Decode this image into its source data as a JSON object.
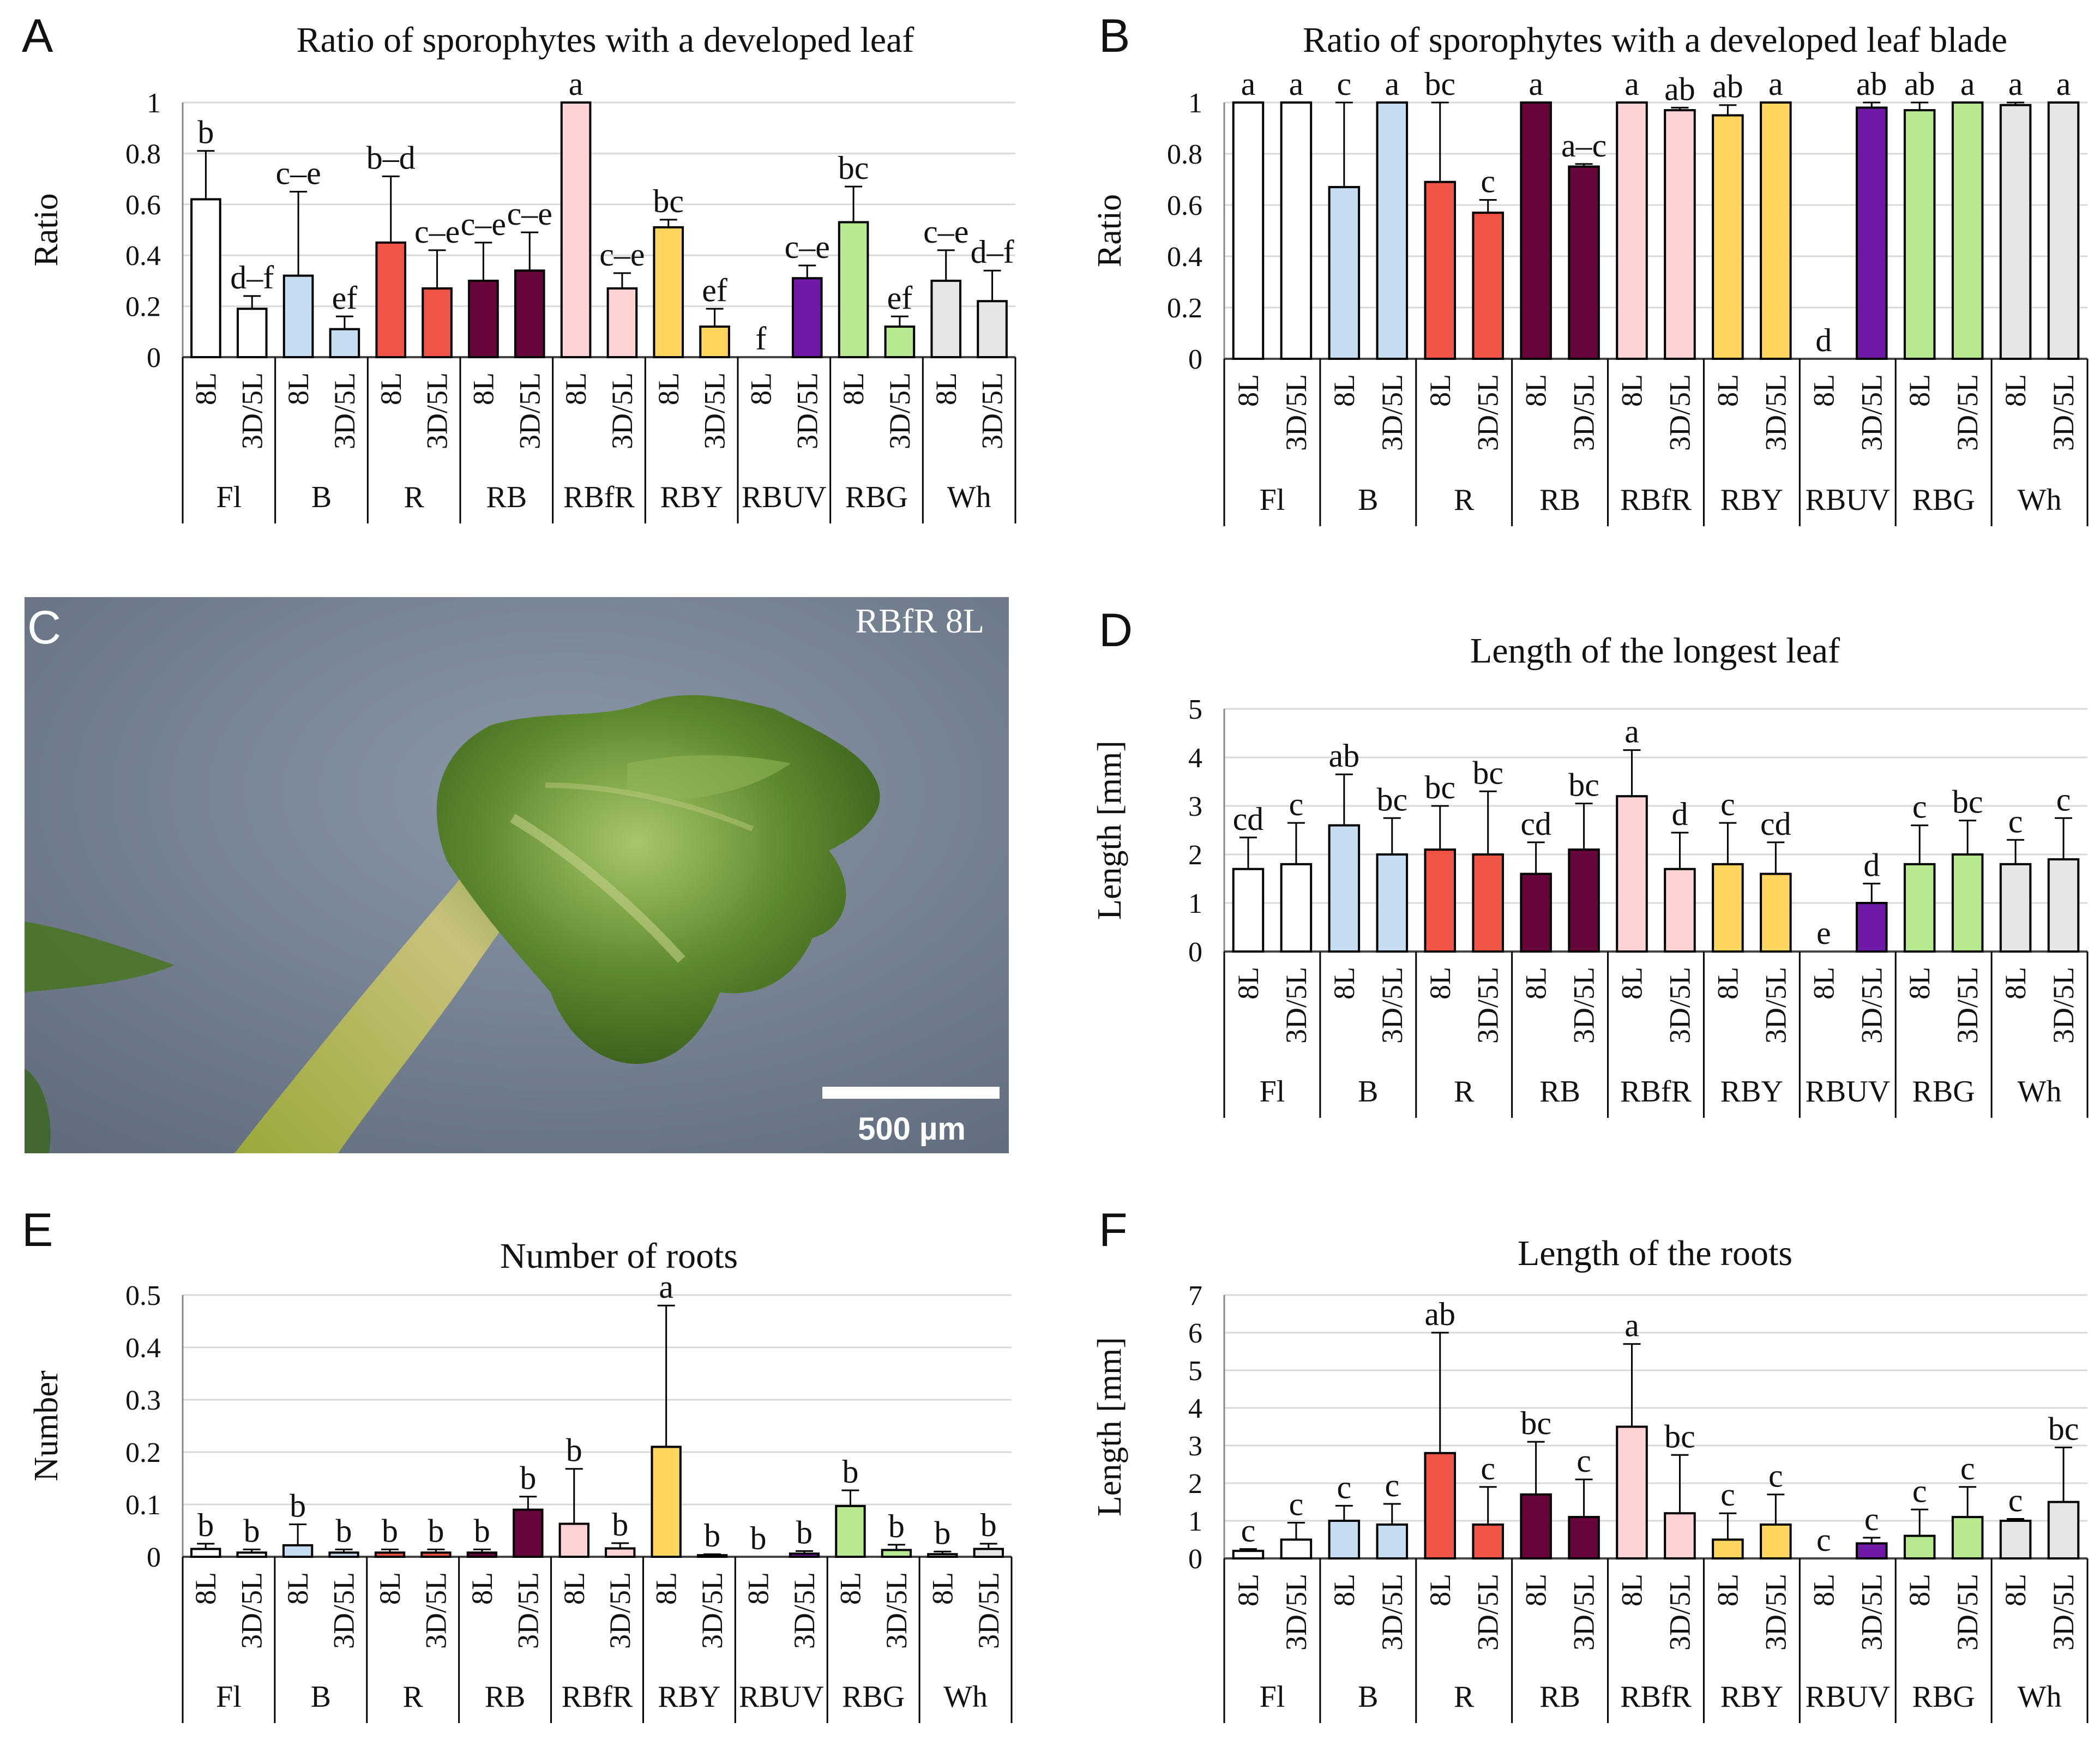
{
  "figure": {
    "photo": {
      "letter": "C",
      "label": "RBfR 8L",
      "scale_label": "500 µm"
    }
  },
  "colors": {
    "Fl": "#ffffff",
    "B": "#c6dcf0",
    "R": "#ef5446",
    "RB": "#66063a",
    "RBfR": "#ffd2d5",
    "RBY": "#ffd55e",
    "RBUV": "#7019a9",
    "RBG": "#b7e990",
    "Wh": "#e6e6e6"
  },
  "chart_data": [
    {
      "id": "A",
      "letter": "A",
      "type": "bar",
      "title": "Ratio of sporophytes with a developed leaf",
      "ylabel": "Ratio",
      "xlabel": "",
      "ylim": [
        0,
        1
      ],
      "yticks": [
        "0",
        "0.2",
        "0.4",
        "0.6",
        "0.8",
        "1"
      ],
      "groups": [
        "Fl",
        "B",
        "R",
        "RB",
        "RBfR",
        "RBY",
        "RBUV",
        "RBG",
        "Wh"
      ],
      "sub_categories": [
        "8L",
        "3D/5L"
      ],
      "values": [
        0.62,
        0.19,
        0.32,
        0.11,
        0.45,
        0.27,
        0.3,
        0.34,
        1.0,
        0.27,
        0.51,
        0.12,
        0.0,
        0.31,
        0.53,
        0.12,
        0.3,
        0.22
      ],
      "errors": [
        0.19,
        0.05,
        0.33,
        0.05,
        0.26,
        0.15,
        0.15,
        0.15,
        0.0,
        0.06,
        0.03,
        0.07,
        0.0,
        0.05,
        0.14,
        0.04,
        0.12,
        0.12
      ],
      "letters": [
        "b",
        "d–f",
        "c–e",
        "ef",
        "b–d",
        "c–e",
        "c–e",
        "c–e",
        "a",
        "c–e",
        "bc",
        "ef",
        "f",
        "c–e",
        "bc",
        "ef",
        "c–e",
        "d–f"
      ]
    },
    {
      "id": "B",
      "letter": "B",
      "type": "bar",
      "title": "Ratio of sporophytes with a developed leaf blade",
      "ylabel": "Ratio",
      "xlabel": "",
      "ylim": [
        0,
        1
      ],
      "yticks": [
        "0",
        "0.2",
        "0.4",
        "0.6",
        "0.8",
        "1"
      ],
      "groups": [
        "Fl",
        "B",
        "R",
        "RB",
        "RBfR",
        "RBY",
        "RBUV",
        "RBG",
        "Wh"
      ],
      "sub_categories": [
        "8L",
        "3D/5L"
      ],
      "values": [
        1.0,
        1.0,
        0.67,
        1.0,
        0.69,
        0.57,
        1.0,
        0.75,
        1.0,
        0.97,
        0.95,
        1.0,
        0.0,
        0.98,
        0.97,
        1.0,
        0.99,
        1.0
      ],
      "errors": [
        0.0,
        0.0,
        0.33,
        0.0,
        0.31,
        0.05,
        0.0,
        0.01,
        0.0,
        0.01,
        0.04,
        0.0,
        0.0,
        0.02,
        0.03,
        0.0,
        0.01,
        0.0
      ],
      "letters": [
        "a",
        "a",
        "c",
        "a",
        "bc",
        "c",
        "a",
        "a–c",
        "a",
        "ab",
        "ab",
        "a",
        "d",
        "ab",
        "ab",
        "a",
        "a",
        "a"
      ]
    },
    {
      "id": "D",
      "letter": "D",
      "type": "bar",
      "title": "Length of the longest leaf",
      "ylabel": "Length [mm]",
      "xlabel": "",
      "ylim": [
        0,
        5
      ],
      "yticks": [
        "0",
        "1",
        "2",
        "3",
        "4",
        "5"
      ],
      "groups": [
        "Fl",
        "B",
        "R",
        "RB",
        "RBfR",
        "RBY",
        "RBUV",
        "RBG",
        "Wh"
      ],
      "sub_categories": [
        "8L",
        "3D/5L"
      ],
      "values": [
        1.7,
        1.8,
        2.6,
        2.0,
        2.1,
        2.0,
        1.6,
        2.1,
        3.2,
        1.7,
        1.8,
        1.6,
        0.0,
        1.0,
        1.8,
        2.0,
        1.8,
        1.9
      ],
      "errors": [
        0.65,
        0.85,
        1.05,
        0.75,
        0.9,
        1.3,
        0.65,
        0.95,
        0.95,
        0.75,
        0.85,
        0.65,
        0.0,
        0.4,
        0.8,
        0.7,
        0.5,
        0.85
      ],
      "letters": [
        "cd",
        "c",
        "ab",
        "bc",
        "bc",
        "bc",
        "cd",
        "bc",
        "a",
        "d",
        "c",
        "cd",
        "e",
        "d",
        "c",
        "bc",
        "c",
        "c"
      ]
    },
    {
      "id": "E",
      "letter": "E",
      "type": "bar",
      "title": "Number of roots",
      "ylabel": "Number",
      "xlabel": "",
      "ylim": [
        0,
        0.5
      ],
      "yticks": [
        "0",
        "0.1",
        "0.2",
        "0.3",
        "0.4",
        "0.5"
      ],
      "groups": [
        "Fl",
        "B",
        "R",
        "RB",
        "RBfR",
        "RBY",
        "RBUV",
        "RBG",
        "Wh"
      ],
      "sub_categories": [
        "8L",
        "3D/5L"
      ],
      "values": [
        0.015,
        0.008,
        0.022,
        0.008,
        0.008,
        0.008,
        0.008,
        0.09,
        0.063,
        0.016,
        0.21,
        0.003,
        0.0,
        0.006,
        0.097,
        0.013,
        0.005,
        0.015
      ],
      "errors": [
        0.01,
        0.006,
        0.04,
        0.006,
        0.006,
        0.006,
        0.006,
        0.025,
        0.105,
        0.01,
        0.27,
        0.002,
        0.0,
        0.005,
        0.03,
        0.01,
        0.005,
        0.01
      ],
      "letters": [
        "b",
        "b",
        "b",
        "b",
        "b",
        "b",
        "b",
        "b",
        "b",
        "b",
        "a",
        "b",
        "b",
        "b",
        "b",
        "b",
        "b",
        "b"
      ]
    },
    {
      "id": "F",
      "letter": "F",
      "type": "bar",
      "title": "Length of the roots",
      "ylabel": "Length [mm]",
      "xlabel": "",
      "ylim": [
        0,
        7
      ],
      "yticks": [
        "0",
        "1",
        "2",
        "3",
        "4",
        "5",
        "6",
        "7"
      ],
      "groups": [
        "Fl",
        "B",
        "R",
        "RB",
        "RBfR",
        "RBY",
        "RBUV",
        "RBG",
        "Wh"
      ],
      "sub_categories": [
        "8L",
        "3D/5L"
      ],
      "values": [
        0.2,
        0.5,
        1.0,
        0.9,
        2.8,
        0.9,
        1.7,
        1.1,
        3.5,
        1.2,
        0.5,
        0.9,
        0.0,
        0.4,
        0.6,
        1.1,
        1.0,
        1.5
      ],
      "errors": [
        0.05,
        0.45,
        0.4,
        0.55,
        3.2,
        1.0,
        1.4,
        1.0,
        2.2,
        1.55,
        0.7,
        0.8,
        0.0,
        0.15,
        0.7,
        0.8,
        0.05,
        1.45
      ],
      "letters": [
        "c",
        "c",
        "c",
        "c",
        "ab",
        "c",
        "bc",
        "c",
        "a",
        "bc",
        "c",
        "c",
        "c",
        "c",
        "c",
        "c",
        "c",
        "bc"
      ]
    }
  ]
}
